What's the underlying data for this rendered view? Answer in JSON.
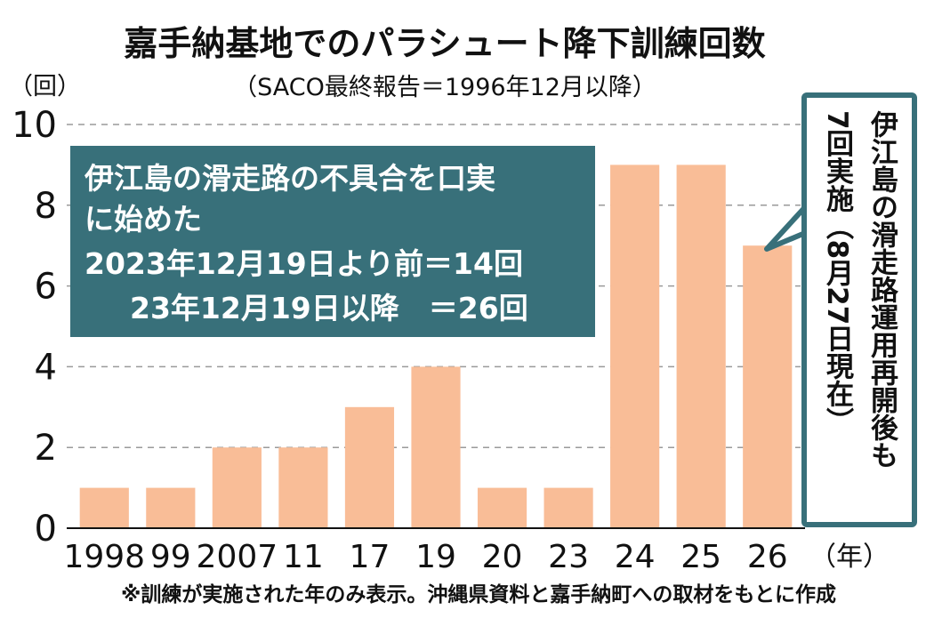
{
  "chart_data": {
    "type": "bar",
    "title": "嘉手納基地でのパラシュート降下訓練回数",
    "subtitle": "（SACO最終報告＝1996年12月以降）",
    "ylabel": "（回）",
    "xlabel": "（年）",
    "categories": [
      "1998",
      "99",
      "2007",
      "11",
      "17",
      "19",
      "20",
      "23",
      "24",
      "25",
      "26"
    ],
    "values": [
      1,
      1,
      2,
      2,
      3,
      4,
      1,
      1,
      9,
      9,
      7
    ],
    "ylim": [
      0,
      10
    ],
    "yticks": [
      "0",
      "2",
      "4",
      "6",
      "8",
      "10"
    ],
    "grid": true,
    "bar_color": "#f9bd97",
    "panel_color": "#38707a",
    "annotation_box": {
      "lines": [
        "伊江島の滑走路の不具合を口実",
        "に始めた",
        "2023年12月19日より前＝14回",
        "23年12月19日以降　＝26回"
      ]
    },
    "callout": {
      "column_right": "伊江島の滑走路運用再開後も",
      "column_left": "7回実施（8月27日現在）"
    },
    "note": "※訓練が実施された年のみ表示。沖縄県資料と嘉手納町への取材をもとに作成"
  }
}
